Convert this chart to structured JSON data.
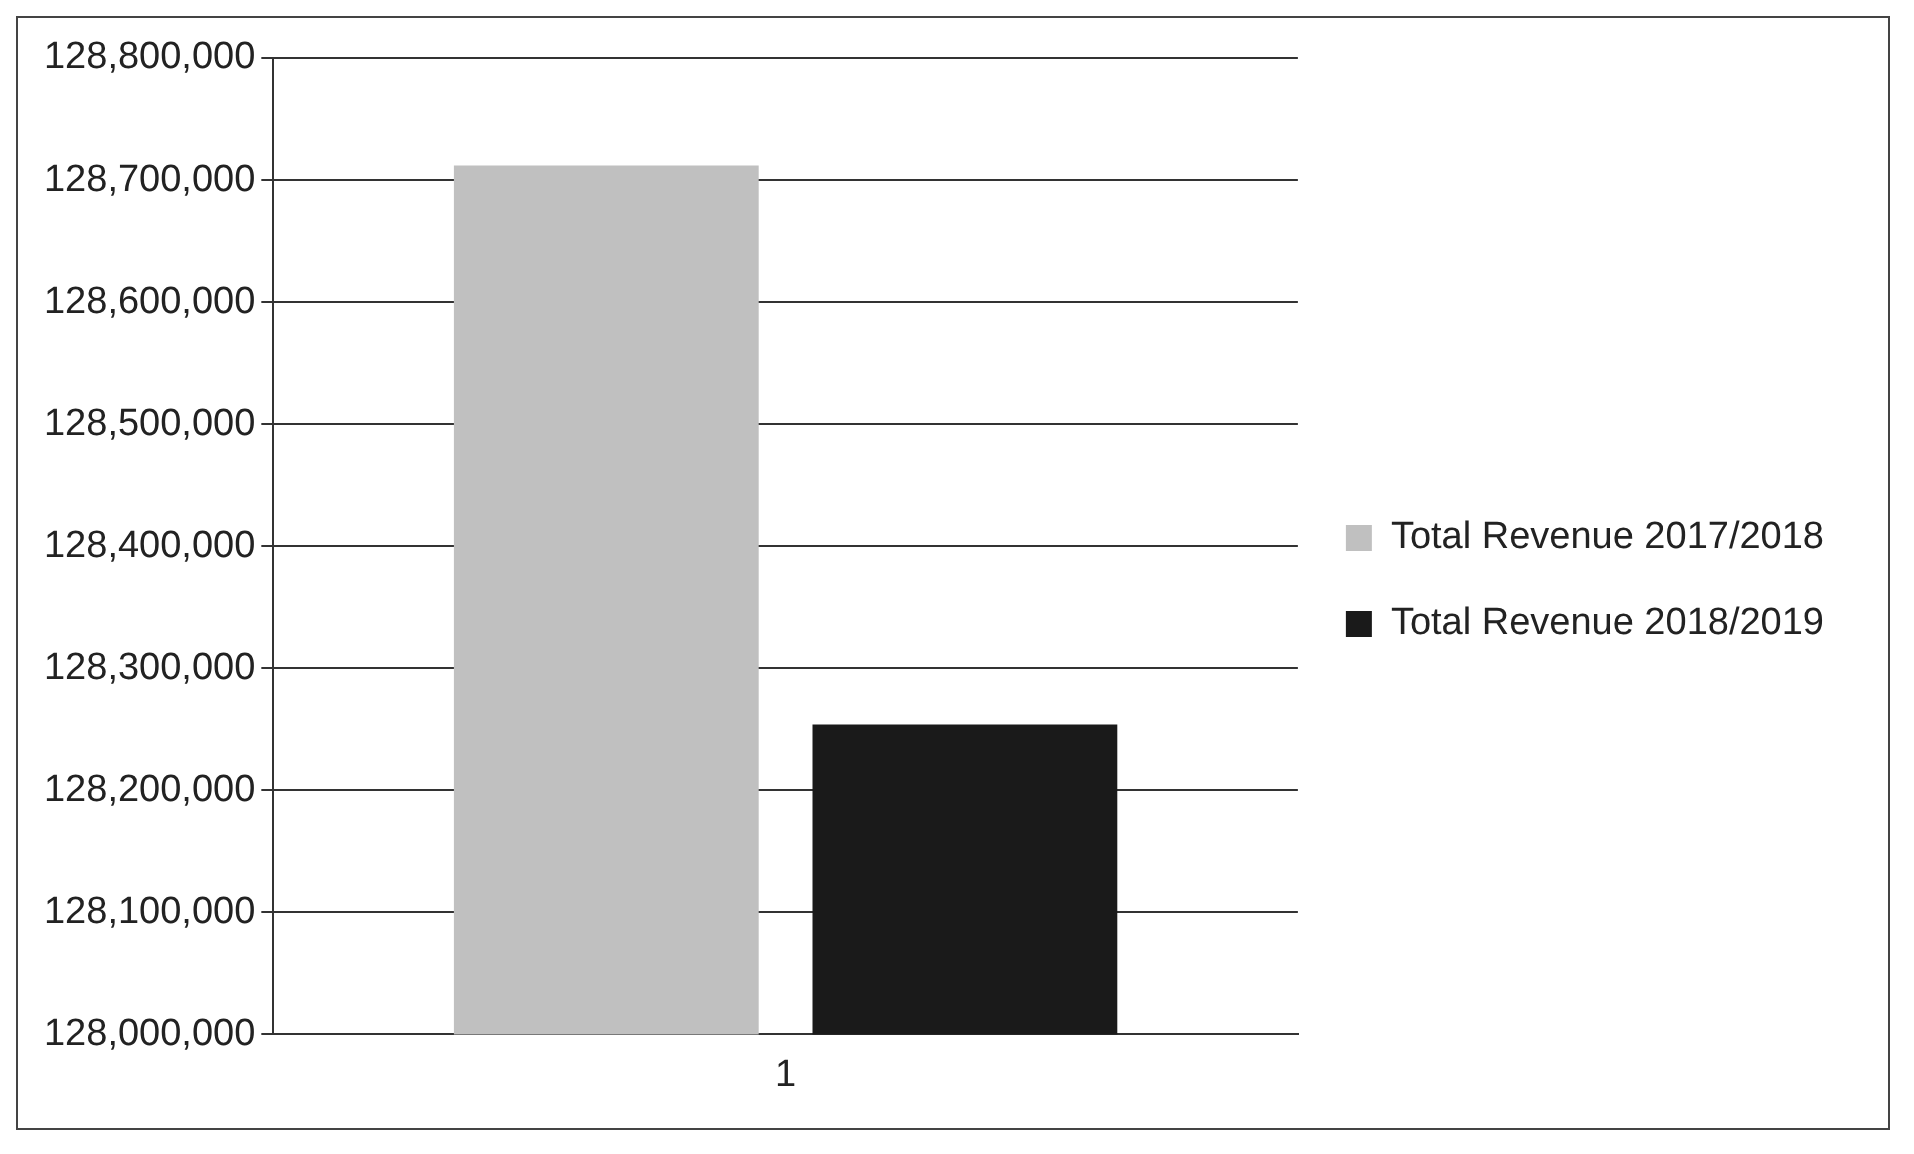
{
  "chart_data": {
    "type": "bar",
    "categories": [
      "1"
    ],
    "series": [
      {
        "name": "Total Revenue 2017/2018",
        "color": "#c0c0c0",
        "values": [
          128712000
        ]
      },
      {
        "name": "Total Revenue 2018/2019",
        "color": "#1a1a1a",
        "values": [
          128254000
        ]
      }
    ],
    "ylim": [
      128000000,
      128800000
    ],
    "yticks": [
      {
        "value": 128000000,
        "label": "128,000,000"
      },
      {
        "value": 128100000,
        "label": "128,100,000"
      },
      {
        "value": 128200000,
        "label": "128,200,000"
      },
      {
        "value": 128300000,
        "label": "128,300,000"
      },
      {
        "value": 128400000,
        "label": "128,400,000"
      },
      {
        "value": 128500000,
        "label": "128,500,000"
      },
      {
        "value": 128600000,
        "label": "128,600,000"
      },
      {
        "value": 128700000,
        "label": "128,700,000"
      },
      {
        "value": 128800000,
        "label": "128,800,000"
      }
    ],
    "grid": "y",
    "legend": "right"
  }
}
